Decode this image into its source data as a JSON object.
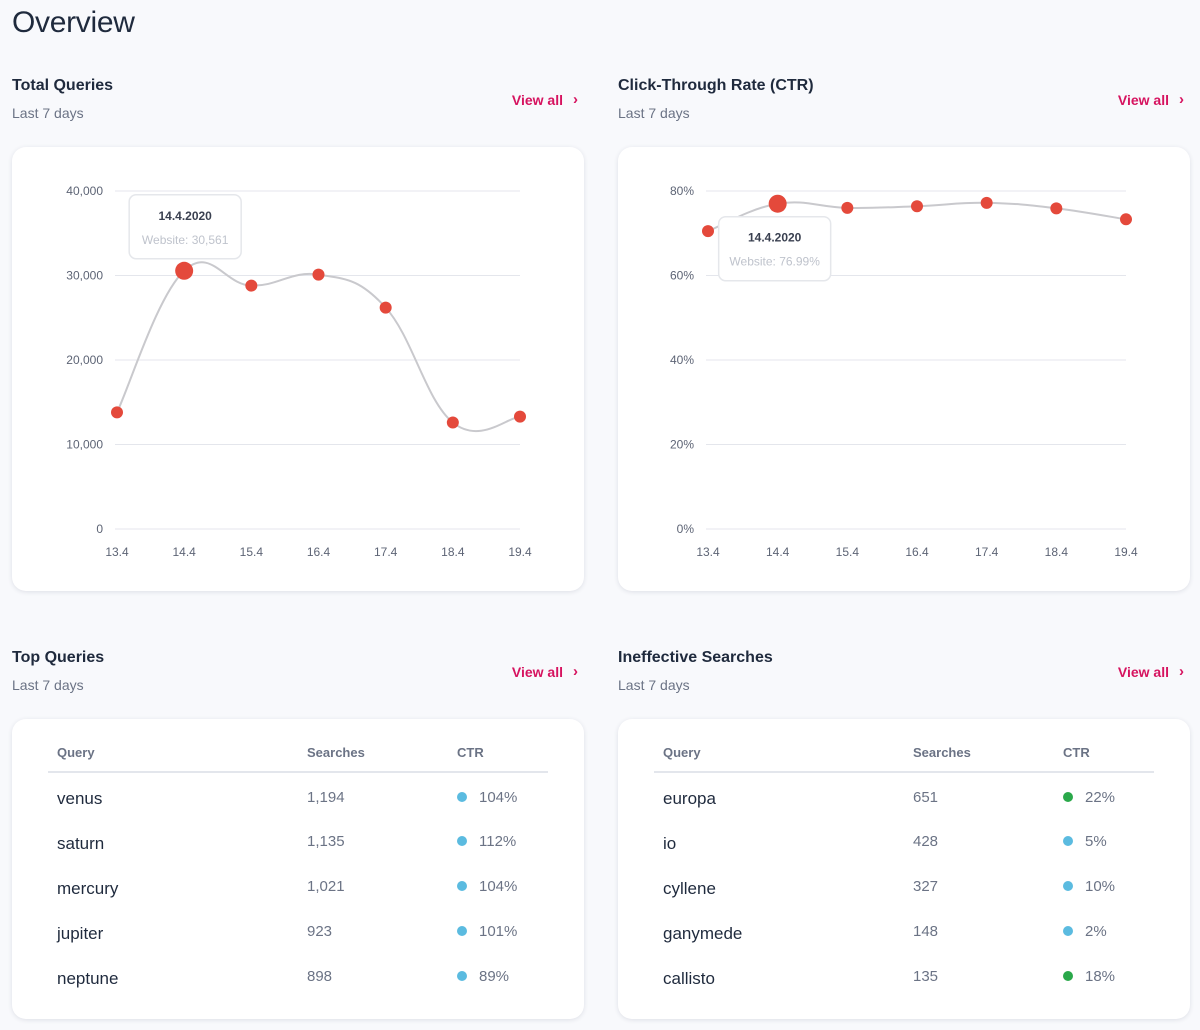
{
  "page": {
    "title": "Overview"
  },
  "colors": {
    "accent": "#d6135f",
    "point": "#e4493b",
    "line": "#c9c9cd",
    "dot_blue": "#5bbbe0",
    "dot_green": "#2aa84a"
  },
  "sections": {
    "queries": {
      "title": "Total Queries",
      "subtitle": "Last 7 days",
      "view_all": "View all",
      "tooltip": {
        "title": "14.4.2020",
        "value": "Website: 30,561",
        "index": 1
      },
      "chart_data": {
        "type": "line",
        "x": [
          "13.4",
          "14.4",
          "15.4",
          "16.4",
          "17.4",
          "18.4",
          "19.4"
        ],
        "series": [
          {
            "values": [
              13800,
              30561,
              28800,
              30100,
              26200,
              12600,
              13300
            ]
          }
        ],
        "ylim": [
          0,
          40000
        ],
        "yticks": [
          "0",
          "10,000",
          "20,000",
          "30,000",
          "40,000"
        ],
        "ytick_values": [
          0,
          10000,
          20000,
          30000,
          40000
        ],
        "grid": true
      }
    },
    "ctr": {
      "title": "Click-Through Rate (CTR)",
      "subtitle": "Last 7 days",
      "view_all": "View all",
      "tooltip": {
        "title": "14.4.2020",
        "value": "Website: 76.99%",
        "index": 1
      },
      "chart_data": {
        "type": "line",
        "x": [
          "13.4",
          "14.4",
          "15.4",
          "16.4",
          "17.4",
          "18.4",
          "19.4"
        ],
        "series": [
          {
            "values": [
              70.5,
              76.99,
              76,
              76.4,
              77.2,
              75.9,
              73.3
            ]
          }
        ],
        "ylim": [
          0,
          80
        ],
        "yticks": [
          "0%",
          "20%",
          "40%",
          "60%",
          "80%"
        ],
        "ytick_values": [
          0,
          20,
          40,
          60,
          80
        ],
        "grid": true
      }
    },
    "top": {
      "title": "Top Queries",
      "subtitle": "Last 7 days",
      "view_all": "View all",
      "columns": [
        "Query",
        "Searches",
        "CTR"
      ],
      "rows": [
        {
          "query": "venus",
          "searches": "1,194",
          "ctr": "104%",
          "dot": "blue"
        },
        {
          "query": "saturn",
          "searches": "1,135",
          "ctr": "112%",
          "dot": "blue"
        },
        {
          "query": "mercury",
          "searches": "1,021",
          "ctr": "104%",
          "dot": "blue"
        },
        {
          "query": "jupiter",
          "searches": "923",
          "ctr": "101%",
          "dot": "blue"
        },
        {
          "query": "neptune",
          "searches": "898",
          "ctr": "89%",
          "dot": "blue"
        }
      ]
    },
    "ineffective": {
      "title": "Ineffective Searches",
      "subtitle": "Last 7 days",
      "view_all": "View all",
      "columns": [
        "Query",
        "Searches",
        "CTR"
      ],
      "rows": [
        {
          "query": "europa",
          "searches": "651",
          "ctr": "22%",
          "dot": "green"
        },
        {
          "query": "io",
          "searches": "428",
          "ctr": "5%",
          "dot": "blue"
        },
        {
          "query": "cyllene",
          "searches": "327",
          "ctr": "10%",
          "dot": "blue"
        },
        {
          "query": "ganymede",
          "searches": "148",
          "ctr": "2%",
          "dot": "blue"
        },
        {
          "query": "callisto",
          "searches": "135",
          "ctr": "18%",
          "dot": "green"
        }
      ]
    }
  }
}
